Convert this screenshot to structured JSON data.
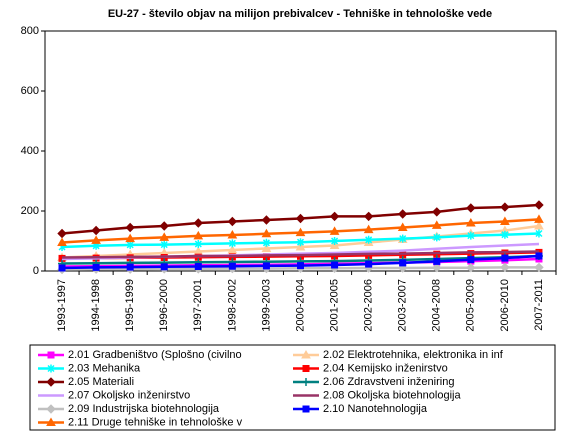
{
  "chart_data": {
    "type": "line",
    "title": "EU-27 - število objav na milijon prebivalcev - Tehniške in tehnološke vede",
    "categories": [
      "1993-1997",
      "1994-1998",
      "1995-1999",
      "1996-2000",
      "1997-2001",
      "1998-2002",
      "1999-2003",
      "2000-2004",
      "2001-2005",
      "2002-2006",
      "2003-2007",
      "2004-2008",
      "2005-2009",
      "2006-2010",
      "2007-2011"
    ],
    "ylim": [
      0,
      800
    ],
    "yticks": [
      0,
      200,
      400,
      600,
      800
    ],
    "grid": false,
    "series": [
      {
        "name": "2.01 Gradbeništvo (Splošno (civilno",
        "color": "#ff00ff",
        "marker": "square",
        "values": [
          15,
          16,
          17,
          18,
          19,
          20,
          21,
          22,
          24,
          26,
          28,
          30,
          33,
          36,
          40
        ]
      },
      {
        "name": "2.02 Elektrotehnika, elektronika in inf",
        "color": "#ffcc99",
        "marker": "triangle",
        "values": [
          45,
          50,
          55,
          60,
          65,
          70,
          75,
          80,
          85,
          95,
          105,
          115,
          125,
          135,
          150
        ]
      },
      {
        "name": "2.03 Mehanika",
        "color": "#00ffff",
        "marker": "star",
        "values": [
          80,
          84,
          87,
          88,
          90,
          92,
          94,
          96,
          100,
          104,
          108,
          112,
          118,
          121,
          125
        ]
      },
      {
        "name": "2.04 Kemijsko inženirstvo",
        "color": "#ff0000",
        "marker": "square",
        "values": [
          42,
          43,
          44,
          45,
          46,
          47,
          48,
          49,
          50,
          52,
          54,
          56,
          58,
          60,
          62
        ]
      },
      {
        "name": "2.05 Materiali",
        "color": "#800000",
        "marker": "diamond",
        "values": [
          125,
          135,
          145,
          150,
          160,
          165,
          170,
          175,
          182,
          182,
          190,
          197,
          210,
          213,
          220
        ]
      },
      {
        "name": "2.06 Zdravstveni inženiring",
        "color": "#008080",
        "marker": "plus",
        "values": [
          25,
          26,
          27,
          28,
          29,
          30,
          31,
          32,
          33,
          35,
          37,
          40,
          43,
          46,
          50
        ]
      },
      {
        "name": "2.07 Okoljsko inženirstvo",
        "color": "#cc99ff",
        "marker": "none",
        "values": [
          40,
          42,
          45,
          48,
          50,
          52,
          55,
          58,
          60,
          64,
          68,
          74,
          80,
          85,
          90
        ]
      },
      {
        "name": "2.08 Okoljska biotehnologija",
        "color": "#993366",
        "marker": "none",
        "values": [
          45,
          46,
          47,
          48,
          50,
          50,
          52,
          53,
          55,
          57,
          58,
          60,
          62,
          63,
          65
        ]
      },
      {
        "name": "2.09 Industrijska biotehnologija",
        "color": "#c0c0c0",
        "marker": "diamond",
        "values": [
          5,
          6,
          6,
          7,
          7,
          8,
          8,
          9,
          9,
          10,
          10,
          11,
          11,
          12,
          12
        ]
      },
      {
        "name": "2.10 Nanotehnologija",
        "color": "#0000ff",
        "marker": "square",
        "values": [
          10,
          12,
          13,
          14,
          15,
          16,
          17,
          18,
          20,
          23,
          27,
          32,
          38,
          43,
          50
        ]
      },
      {
        "name": "2.11 Druge tehniške in tehnološke v",
        "color": "#ff6600",
        "marker": "triangle",
        "values": [
          95,
          102,
          108,
          112,
          117,
          120,
          124,
          128,
          132,
          138,
          145,
          152,
          160,
          165,
          172
        ]
      }
    ]
  }
}
